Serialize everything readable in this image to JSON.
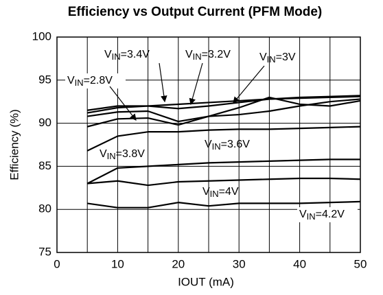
{
  "chart_data": {
    "type": "line",
    "title": "Efficiency vs Output Current (PFM Mode)",
    "xlabel": "IOUT (mA)",
    "ylabel": "Efficiency (%)",
    "x": [
      5,
      10,
      15,
      20,
      25,
      30,
      35,
      40,
      45,
      50
    ],
    "series": [
      {
        "name": "VIN=3.4V",
        "color": "#000000",
        "values": [
          91.5,
          92.0,
          92.0,
          92.2,
          92.4,
          92.6,
          92.8,
          93.0,
          93.1,
          93.2
        ]
      },
      {
        "name": "VIN=3.2V",
        "color": "#000000",
        "values": [
          91.2,
          91.8,
          92.0,
          91.7,
          92.0,
          92.4,
          92.8,
          92.9,
          93.0,
          93.1
        ]
      },
      {
        "name": "VIN=3V",
        "color": "#000000",
        "values": [
          90.8,
          91.3,
          91.4,
          90.2,
          90.8,
          91.0,
          91.4,
          92.0,
          92.5,
          92.8
        ]
      },
      {
        "name": "VIN=2.8V",
        "color": "#000000",
        "values": [
          89.6,
          90.5,
          90.6,
          89.8,
          90.8,
          91.8,
          93.0,
          92.2,
          92.0,
          92.6
        ]
      },
      {
        "name": "VIN=3.6V",
        "color": "#000000",
        "values": [
          86.8,
          88.5,
          89.0,
          89.0,
          89.2,
          89.3,
          89.3,
          89.4,
          89.5,
          89.6
        ]
      },
      {
        "name": "VIN=3.8V",
        "color": "#000000",
        "values": [
          83.0,
          84.8,
          85.0,
          85.2,
          85.4,
          85.5,
          85.6,
          85.7,
          85.8,
          85.8
        ]
      },
      {
        "name": "VIN=4V",
        "color": "#000000",
        "values": [
          83.0,
          83.3,
          82.8,
          83.2,
          83.3,
          83.4,
          83.5,
          83.6,
          83.6,
          83.5
        ]
      },
      {
        "name": "VIN=4.2V",
        "color": "#000000",
        "values": [
          80.7,
          80.2,
          80.2,
          80.8,
          80.4,
          80.7,
          80.7,
          80.7,
          80.8,
          80.9
        ]
      }
    ],
    "xlim": [
      0,
      50
    ],
    "xticks": [
      0,
      10,
      20,
      30,
      40,
      50
    ],
    "xgrid": [
      5,
      10,
      15,
      20,
      25,
      30,
      35,
      40,
      45
    ],
    "ylim": [
      75,
      100
    ],
    "yticks": [
      75,
      80,
      85,
      90,
      95,
      100
    ],
    "grid": true
  }
}
